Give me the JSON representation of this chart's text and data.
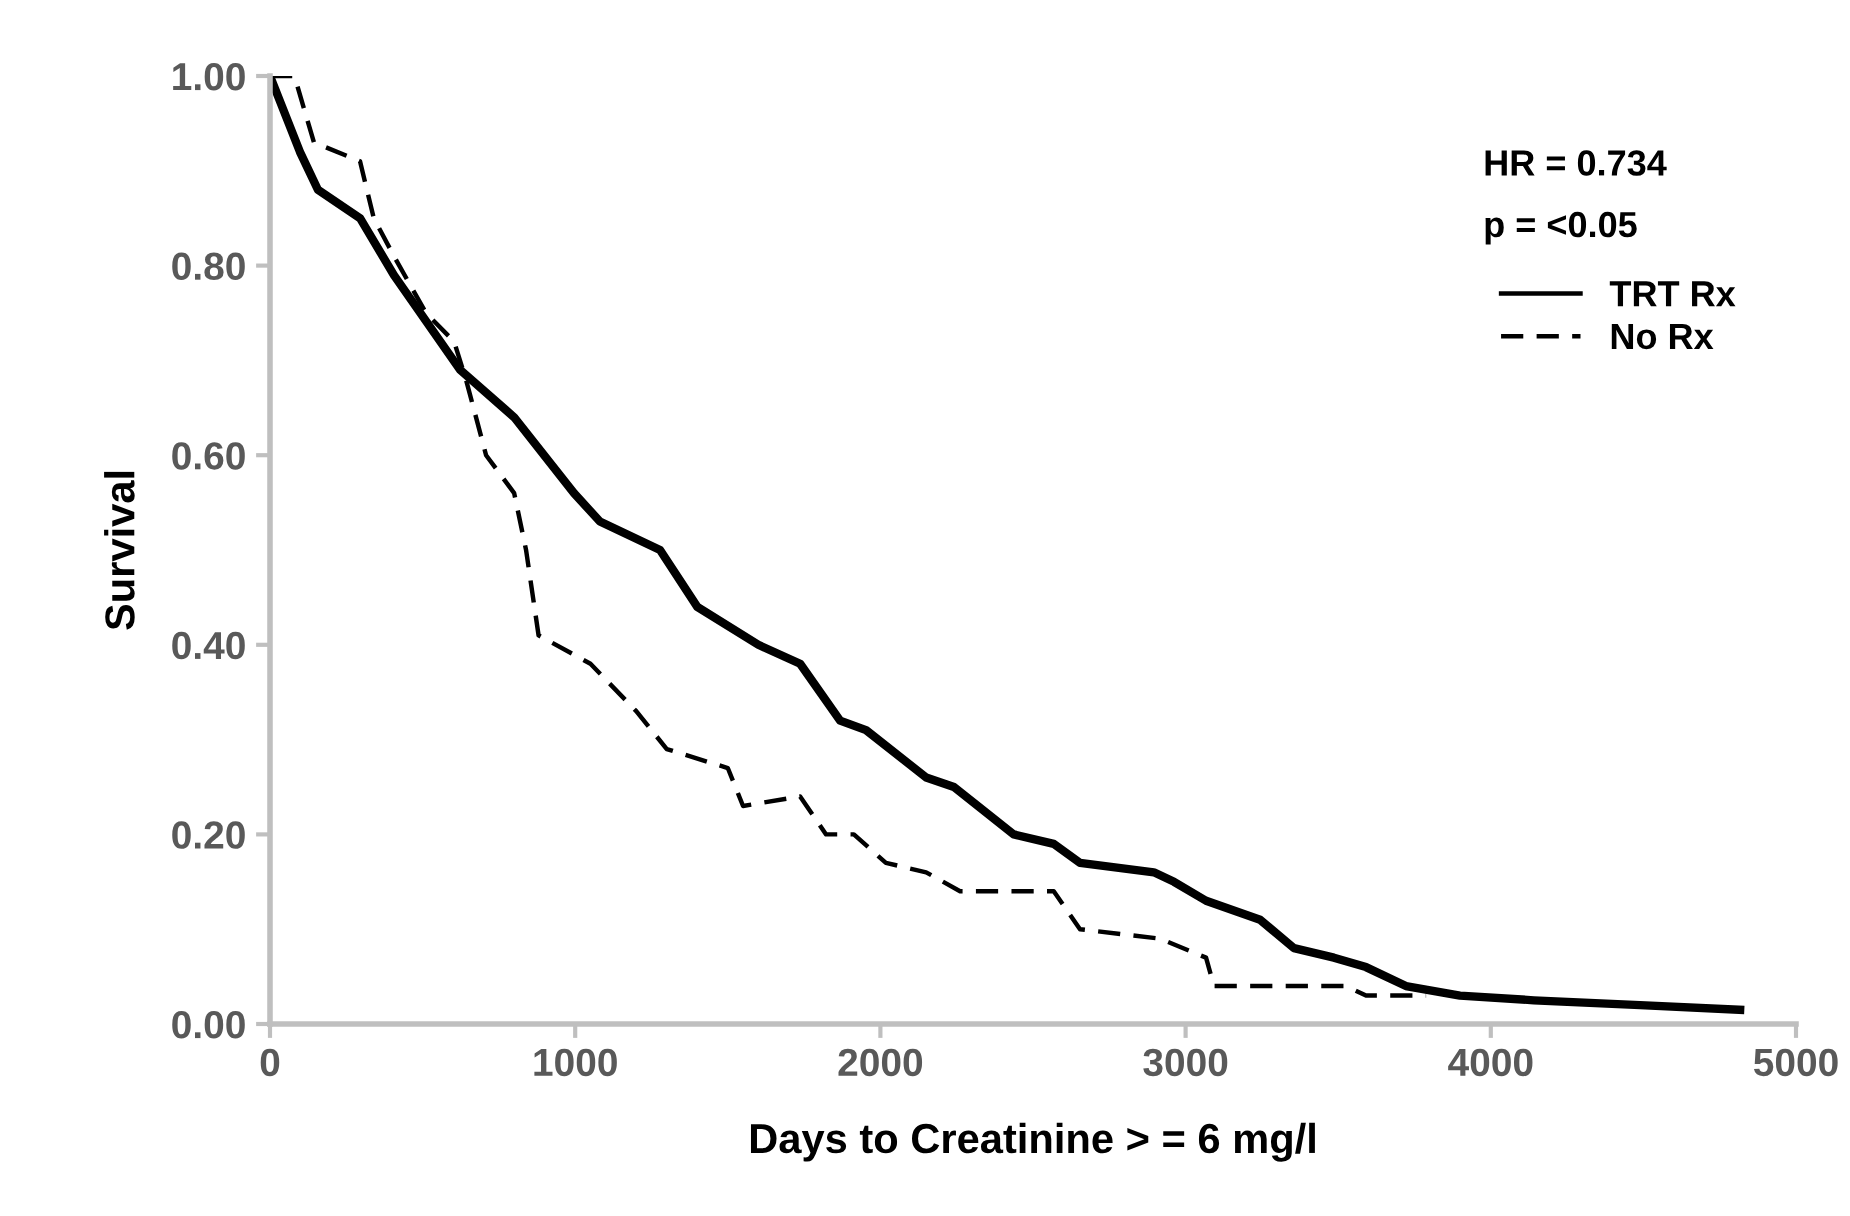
{
  "chart_data": {
    "type": "line",
    "xlabel": "Days to Creatinine > = 6 mg/l",
    "ylabel": "Survival",
    "xlim": [
      0,
      5000
    ],
    "xticks": [
      0,
      1000,
      2000,
      3000,
      4000,
      5000
    ],
    "ylim": [
      0,
      1
    ],
    "yticks": [
      {
        "value": 0,
        "label": "0.00"
      },
      {
        "value": 0.2,
        "label": "0.20"
      },
      {
        "value": 0.4,
        "label": "0.40"
      },
      {
        "value": 0.6,
        "label": "0.60"
      },
      {
        "value": 0.8,
        "label": "0.80"
      },
      {
        "value": 1,
        "label": "1.00"
      }
    ],
    "grid": false,
    "legend": "top right",
    "marker": "none",
    "annotations": [
      "HR = 0.734",
      "p = <0.05"
    ],
    "series": [
      {
        "name": "TRT Rx",
        "color": "#000000",
        "line_style": "solid",
        "x": [
          0,
          98,
          157,
          295,
          406,
          623,
          800,
          996,
          1081,
          1278,
          1400,
          1600,
          1737,
          1868,
          1953,
          2150,
          2241,
          2437,
          2568,
          2654,
          2896,
          2962,
          3067,
          3244,
          3355,
          3486,
          3591,
          3722,
          3899,
          4141,
          4489,
          4817
        ],
        "values": [
          1.0,
          0.92,
          0.88,
          0.85,
          0.79,
          0.69,
          0.64,
          0.56,
          0.53,
          0.5,
          0.44,
          0.4,
          0.38,
          0.32,
          0.31,
          0.26,
          0.25,
          0.2,
          0.19,
          0.17,
          0.16,
          0.15,
          0.13,
          0.11,
          0.08,
          0.07,
          0.06,
          0.04,
          0.03,
          0.025,
          0.02,
          0.015
        ]
      },
      {
        "name": "No Rx",
        "color": "#000000",
        "line_style": "dashed",
        "x": [
          0,
          80,
          144,
          295,
          340,
          406,
          511,
          603,
          642,
          708,
          800,
          839,
          880,
          1050,
          1200,
          1300,
          1500,
          1550,
          1737,
          1822,
          1913,
          2018,
          2150,
          2261,
          2568,
          2654,
          2916,
          3067,
          3093,
          3526,
          3591,
          3788
        ],
        "values": [
          1.0,
          1.0,
          0.93,
          0.91,
          0.85,
          0.81,
          0.75,
          0.72,
          0.68,
          0.6,
          0.56,
          0.5,
          0.41,
          0.38,
          0.33,
          0.29,
          0.27,
          0.23,
          0.24,
          0.2,
          0.2,
          0.17,
          0.16,
          0.14,
          0.14,
          0.1,
          0.09,
          0.07,
          0.04,
          0.04,
          0.03,
          0.03
        ]
      }
    ]
  }
}
